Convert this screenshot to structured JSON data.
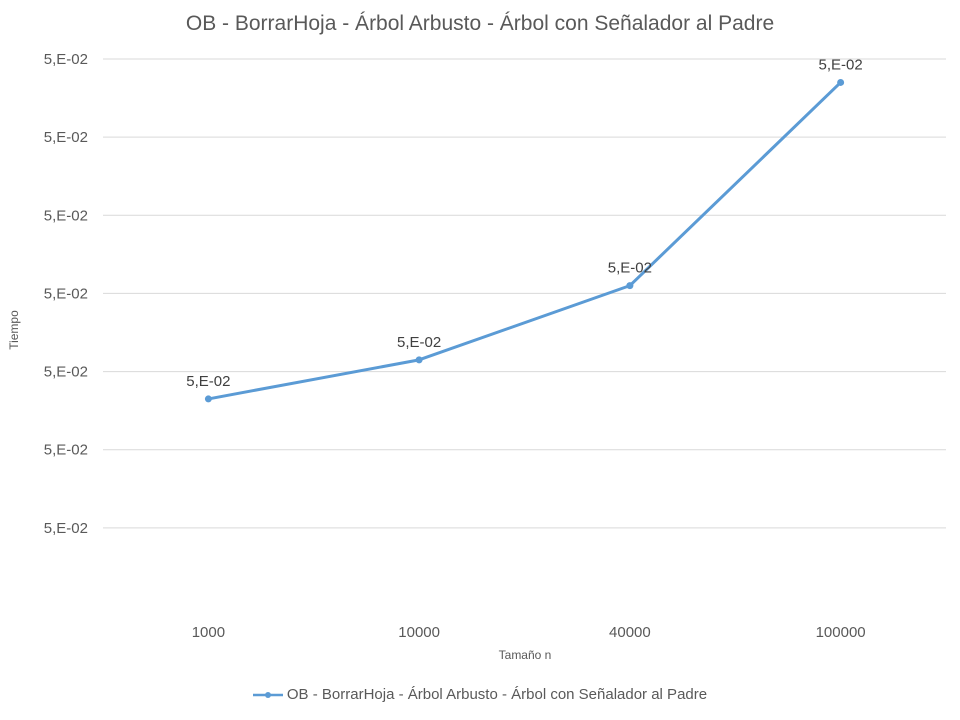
{
  "chart_data": {
    "type": "line",
    "title": "OB - BorrarHoja - Árbol Arbusto - Árbol con Señalador al Padre",
    "xlabel": "Tamaño n",
    "ylabel": "Tiempo",
    "categories": [
      "1000",
      "10000",
      "40000",
      "100000"
    ],
    "series": [
      {
        "name": "OB - BorrarHoja - Árbol Arbusto - Árbol con Señalador al Padre",
        "values": [
          0.0473,
          0.0483,
          0.0502,
          0.0554
        ],
        "data_labels": [
          "5,E-02",
          "5,E-02",
          "5,E-02",
          "5,E-02"
        ],
        "color": "#5B9BD5"
      }
    ],
    "y_ticks": [
      0.044,
      0.046,
      0.048,
      0.05,
      0.052,
      0.054,
      0.056
    ],
    "y_tick_labels": [
      "5,E-02",
      "5,E-02",
      "5,E-02",
      "5,E-02",
      "5,E-02",
      "5,E-02",
      "5,E-02"
    ],
    "ylim": [
      0.042,
      0.056
    ],
    "grid": true,
    "legend_position": "bottom",
    "colors": {
      "line": "#5B9BD5",
      "grid": "#d9d9d9",
      "text": "#595959"
    }
  }
}
